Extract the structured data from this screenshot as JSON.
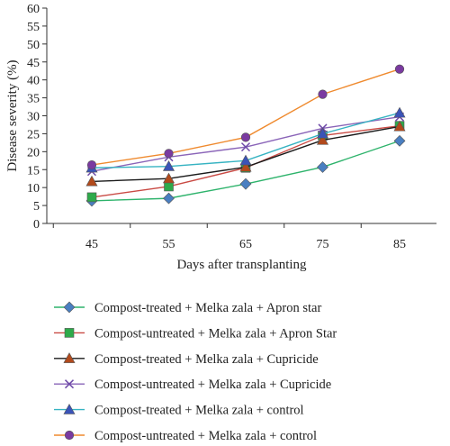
{
  "chart_data": {
    "type": "line",
    "xlabel": "Days after transplanting",
    "ylabel": "Disease severity (%)",
    "x": [
      45,
      55,
      65,
      75,
      85
    ],
    "ylim": [
      0,
      60
    ],
    "yticks": [
      0,
      5,
      10,
      15,
      20,
      25,
      30,
      35,
      40,
      45,
      50,
      55,
      60
    ],
    "grid": false,
    "legend_position": "bottom",
    "series": [
      {
        "name": "Compost-treated + Melka zala + Apron star",
        "marker": "diamond",
        "line_color": "#2db36b",
        "marker_color": "#4a7fc1",
        "values": [
          6.3,
          7.0,
          11.0,
          15.7,
          23.0
        ]
      },
      {
        "name": "Compost-untreated + Melka zala + Apron Star",
        "marker": "square",
        "line_color": "#c94a44",
        "marker_color": "#2eaa4a",
        "values": [
          7.3,
          10.3,
          15.5,
          24.5,
          27.2
        ]
      },
      {
        "name": "Compost-treated + Melka zala + Cupricide",
        "marker": "triangle",
        "line_color": "#1a1a1a",
        "marker_color": "#b24a1c",
        "values": [
          11.7,
          12.5,
          15.7,
          23.2,
          27.0
        ]
      },
      {
        "name": "Compost-untreated + Melka zala + Cupricide",
        "marker": "x",
        "line_color": "#8a64b8",
        "marker_color": "#6e4aa8",
        "values": [
          14.5,
          18.5,
          21.3,
          26.5,
          29.7
        ]
      },
      {
        "name": "Compost-treated + Melka zala + control",
        "marker": "triangle",
        "line_color": "#36b3c2",
        "marker_color": "#3a53b8",
        "values": [
          15.5,
          15.9,
          17.5,
          25.0,
          30.8
        ]
      },
      {
        "name": "Compost-untreated + Melka zala + control",
        "marker": "circle",
        "line_color": "#ef8a2e",
        "marker_color": "#7a3aa0",
        "values": [
          16.3,
          19.5,
          24.0,
          36.0,
          43.0
        ]
      }
    ]
  }
}
